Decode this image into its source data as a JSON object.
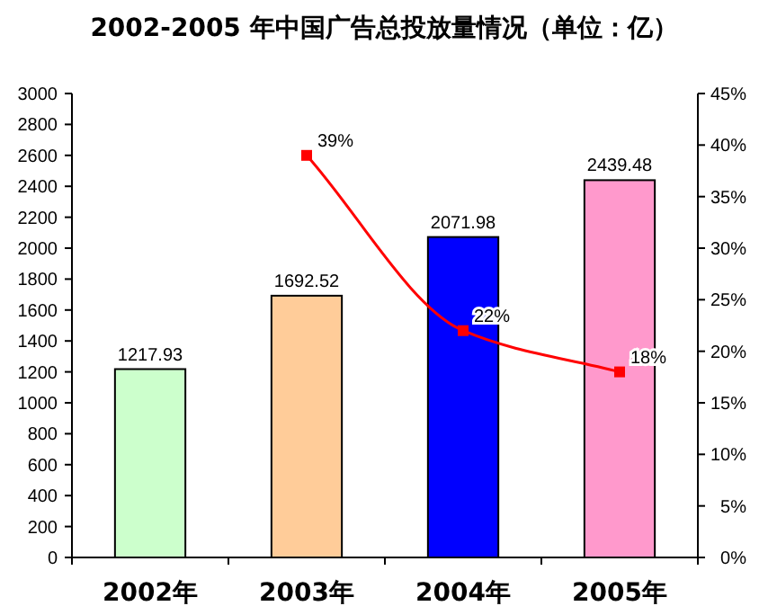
{
  "chart_data": {
    "type": "bar",
    "title": "2002-2005 年中国广告总投放量情况（单位：亿）",
    "categories": [
      "2002年",
      "2003年",
      "2004年",
      "2005年"
    ],
    "ylim": [
      0,
      3000
    ],
    "yticks": [
      0,
      200,
      400,
      600,
      800,
      1000,
      1200,
      1400,
      1600,
      1800,
      2000,
      2200,
      2400,
      2600,
      2800,
      3000
    ],
    "y2lim": [
      0,
      45
    ],
    "y2ticks": [
      {
        "value": 0,
        "label": "0%"
      },
      {
        "value": 5,
        "label": "5%"
      },
      {
        "value": 10,
        "label": "10%"
      },
      {
        "value": 15,
        "label": "15%"
      },
      {
        "value": 20,
        "label": "20%"
      },
      {
        "value": 25,
        "label": "25%"
      },
      {
        "value": 30,
        "label": "30%"
      },
      {
        "value": 35,
        "label": "35%"
      },
      {
        "value": 40,
        "label": "40%"
      },
      {
        "value": 45,
        "label": "45%"
      }
    ],
    "series": [
      {
        "colors": [
          "#ccffcc",
          "#ffcc99",
          "#0000ff",
          "#ff99cc"
        ],
        "values": [
          1217.93,
          1692.52,
          2071.98,
          2439.48
        ],
        "value_labels": [
          "1217.93",
          "1692.52",
          "2071.98",
          "2439.48"
        ]
      },
      {
        "type": "line",
        "axis": "y2",
        "color": "#ff0000",
        "marker": "square",
        "line_style": "solid",
        "values": [
          null,
          39,
          22,
          18
        ],
        "value_labels": [
          null,
          "39%",
          "22%",
          "18%"
        ]
      }
    ]
  }
}
